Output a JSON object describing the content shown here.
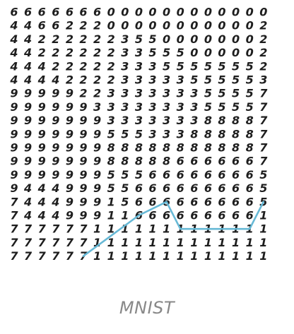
{
  "caption": "MNIST",
  "grid": {
    "rows": [
      "6666666000000000000",
      "4466222000000000002",
      "4422222235500000002",
      "4422222233555000002",
      "4442222233355555552",
      "4444222233333555553",
      "9999922333333355557",
      "9999993333333355557",
      "9999999333333388887",
      "9999999555333888887",
      "9999999888888888887",
      "9999999888886666667",
      "9999999555666666665",
      "9444999556666666665",
      "7444999156666666665",
      "7444999116666666661",
      "7777771111111111111",
      "7777771111111111111",
      "7777771111111111111"
    ]
  },
  "path": {
    "color": "#67b9d6",
    "points": [
      [
        5,
        18
      ],
      [
        9,
        15
      ],
      [
        11,
        14
      ],
      [
        12,
        16
      ],
      [
        15,
        16
      ],
      [
        17,
        16
      ],
      [
        18,
        14
      ]
    ]
  }
}
